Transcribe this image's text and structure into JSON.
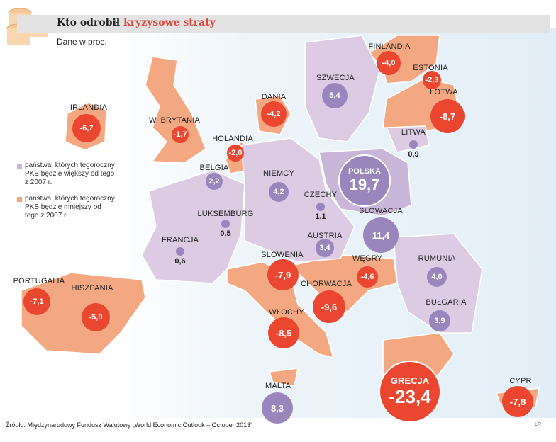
{
  "header": {
    "title_plain": "Kto odrobił",
    "title_highlight": "kryzysowe straty",
    "subtitle": "Dane w proc."
  },
  "legend": [
    {
      "text": "państwa, których tegoroczny PKB będzie większy od tego z 2007 r.",
      "color": "#c9b6d8"
    },
    {
      "text": "państwa, których tegoroczny PKB będzie mniejszy od tego z 2007 r.",
      "color": "#f3a27c"
    }
  ],
  "colors": {
    "gain_circle": "#9a86bd",
    "loss_circle": "#ea4630",
    "gain_land": "#dccbe3",
    "loss_land": "#f3a882",
    "sea": "#e6f1f8"
  },
  "countries": [
    {
      "name": "IRLANDIA",
      "value": "-6,7",
      "type": "loss"
    },
    {
      "name": "W. BRYTANIA",
      "value": "-1,7",
      "type": "loss"
    },
    {
      "name": "HOLANDIA",
      "value": "-2,0",
      "type": "loss"
    },
    {
      "name": "BELGIA",
      "value": "2,2",
      "type": "gain"
    },
    {
      "name": "LUKSEMBURG",
      "value": "0,5",
      "type": "gain"
    },
    {
      "name": "FRANCJA",
      "value": "0,6",
      "type": "gain"
    },
    {
      "name": "PORTUGALIA",
      "value": "-7,1",
      "type": "loss"
    },
    {
      "name": "HISZPANIA",
      "value": "-5,9",
      "type": "loss"
    },
    {
      "name": "NIEMCY",
      "value": "4,2",
      "type": "gain"
    },
    {
      "name": "DANIA",
      "value": "-4,2",
      "type": "loss"
    },
    {
      "name": "SZWECJA",
      "value": "5,4",
      "type": "gain"
    },
    {
      "name": "FINLANDIA",
      "value": "-4,0",
      "type": "loss"
    },
    {
      "name": "ESTONIA",
      "value": "-2,3",
      "type": "loss"
    },
    {
      "name": "ŁOTWA",
      "value": "-8,7",
      "type": "loss"
    },
    {
      "name": "LITWA",
      "value": "0,9",
      "type": "gain"
    },
    {
      "name": "POLSKA",
      "value": "19,7",
      "type": "gain"
    },
    {
      "name": "CZECHY",
      "value": "1,1",
      "type": "gain"
    },
    {
      "name": "SŁOWACJA",
      "value": "11,4",
      "type": "gain"
    },
    {
      "name": "AUSTRIA",
      "value": "3,4",
      "type": "gain"
    },
    {
      "name": "SŁOWENIA",
      "value": "-7,9",
      "type": "loss"
    },
    {
      "name": "WĘGRY",
      "value": "-4,6",
      "type": "loss"
    },
    {
      "name": "CHORWACJA",
      "value": "-9,6",
      "type": "loss"
    },
    {
      "name": "RUMUNIA",
      "value": "4,0",
      "type": "gain"
    },
    {
      "name": "BUŁGARIA",
      "value": "3,9",
      "type": "gain"
    },
    {
      "name": "WŁOCHY",
      "value": "-8,5",
      "type": "loss"
    },
    {
      "name": "GRECJA",
      "value": "-23,4",
      "type": "loss"
    },
    {
      "name": "MALTA",
      "value": "8,3",
      "type": "gain"
    },
    {
      "name": "CYPR",
      "value": "-7,8",
      "type": "loss"
    }
  ],
  "source": "Źródło: Międzynarodowy Fundusz Walutowy „World Economic Outlook – October 2013”",
  "author": "LR"
}
